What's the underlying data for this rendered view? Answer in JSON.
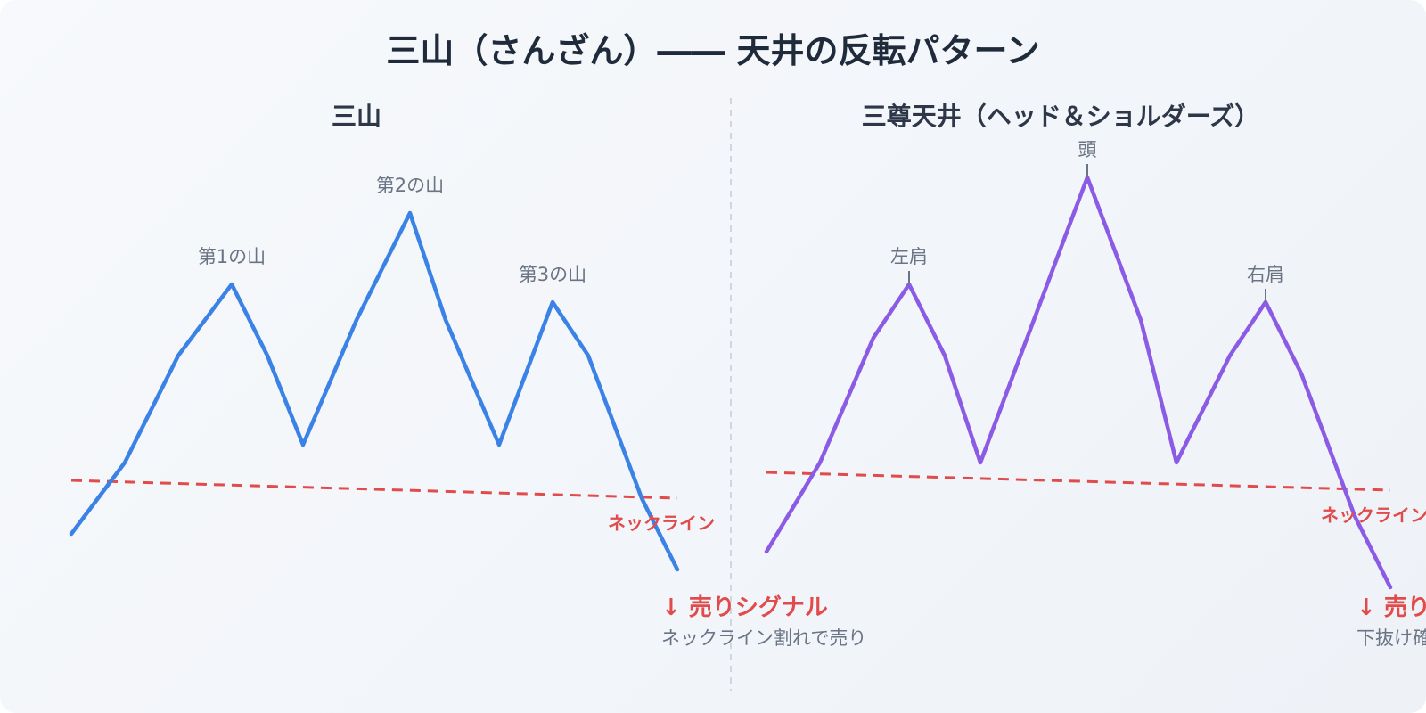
{
  "title": "三山（さんざん）―― 天井の反転パターン",
  "colors": {
    "left_line": "#3b82e6",
    "right_line": "#8b5be6",
    "neckline": "#e14b4b",
    "divider": "#c5cbd3"
  },
  "left": {
    "title": "三山",
    "peaks": [
      "第1の山",
      "第2の山",
      "第3の山"
    ],
    "neckline_label": "ネックライン",
    "signal": "↓ 売りシグナル",
    "signal_sub": "ネックライン割れで売り"
  },
  "right": {
    "title": "三尊天井（ヘッド＆ショルダーズ）",
    "peaks": [
      "左肩",
      "頭",
      "右肩"
    ],
    "neckline_label": "ネックライン",
    "signal": "↓ 売りシグナル",
    "signal_sub": "下抜け確定で売り"
  }
}
